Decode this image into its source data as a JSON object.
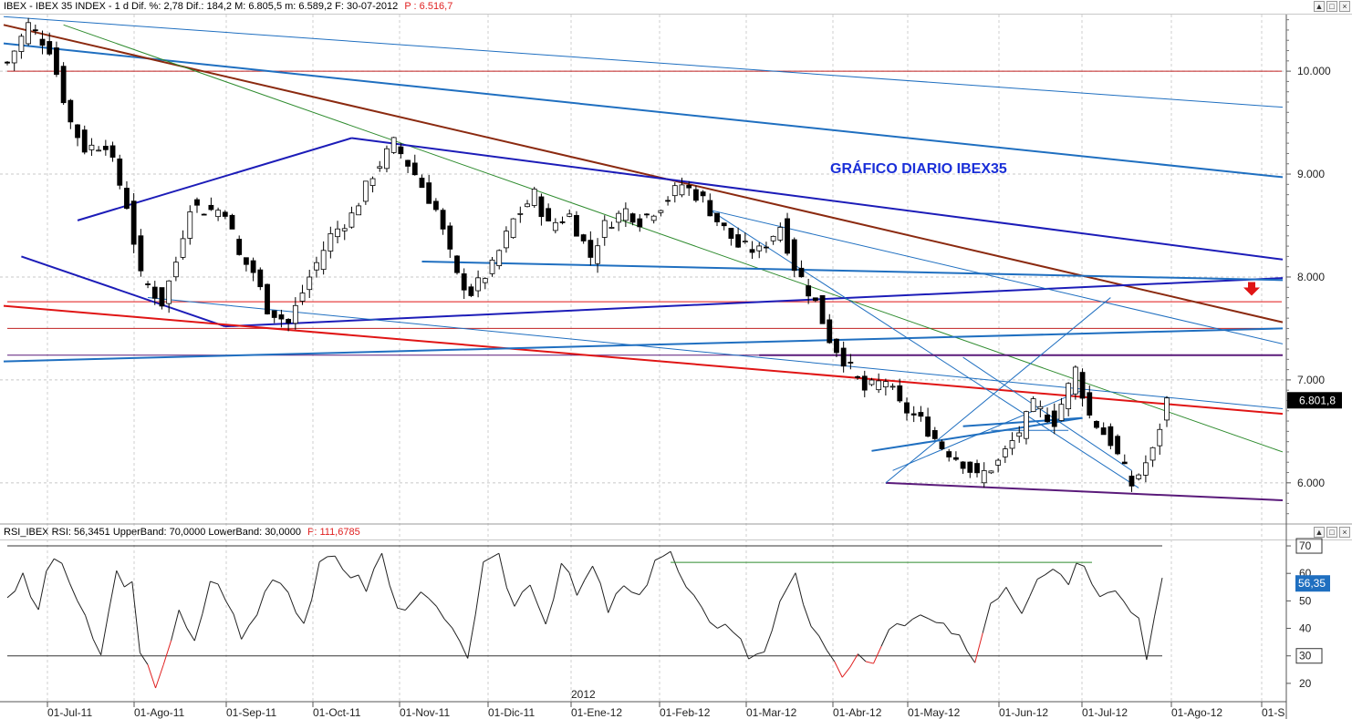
{
  "price_header": {
    "text": "IBEX - IBEX 35 INDEX - 1 d  Dif. %: 2,78  Dif.: 184,2  M: 6.805,5  m: 6.589,2  F: 30-07-2012",
    "p_text": "P : 6.516,7"
  },
  "rsi_header": {
    "text": "RSI_IBEX  RSI: 56,3451  UpperBand: 70,0000  LowerBand: 30,0000",
    "p_text": "P: 111,6785"
  },
  "window_buttons": [
    "▲",
    "□",
    "×"
  ],
  "annotation": "GRÁFICO DIARIO IBEX35",
  "year_label": "2012",
  "colors": {
    "bullish": "#ffffff",
    "bearish": "#000000",
    "trend_blue": "#1f6fc0",
    "trend_navy": "#1c1cb8",
    "trend_brown": "#8b2a10",
    "trend_red": "#e01515",
    "trend_green": "#2e8b2e",
    "trend_purple": "#5a1a7a",
    "rsi_line": "#222222",
    "rsi_oversold": "#e02020",
    "price_tag": "#000000"
  },
  "chart_data": [
    {
      "type": "candlestick",
      "title": "IBEX - IBEX 35 INDEX - 1 d",
      "x_labels": [
        "01-Jul-11",
        "01-Ago-11",
        "01-Sep-11",
        "01-Oct-11",
        "01-Nov-11",
        "01-Dic-11",
        "01-Ene-12",
        "01-Feb-12",
        "01-Mar-12",
        "01-Abr-12",
        "01-May-12",
        "01-Jun-12",
        "01-Jul-12",
        "01-Ago-12",
        "01-S"
      ],
      "y_ticks": [
        6000,
        7000,
        8000,
        9000,
        10000
      ],
      "y_tick_labels": [
        "6.000",
        "7.000",
        "8.000",
        "9.000",
        "10.000"
      ],
      "ylim": [
        5600,
        10550
      ],
      "last_value": 6801.8,
      "last_value_label": "6.801,8",
      "close_anchors": [
        [
          0,
          10080
        ],
        [
          3,
          10450
        ],
        [
          6,
          10220
        ],
        [
          9,
          9500
        ],
        [
          11,
          9250
        ],
        [
          14,
          9300
        ],
        [
          17,
          8700
        ],
        [
          19,
          8000
        ],
        [
          22,
          7750
        ],
        [
          24,
          8150
        ],
        [
          26,
          8700
        ],
        [
          28,
          8650
        ],
        [
          31,
          8650
        ],
        [
          33,
          8200
        ],
        [
          35,
          8050
        ],
        [
          37,
          7700
        ],
        [
          40,
          7550
        ],
        [
          43,
          8000
        ],
        [
          46,
          8400
        ],
        [
          49,
          8600
        ],
        [
          52,
          9000
        ],
        [
          55,
          9300
        ],
        [
          58,
          9000
        ],
        [
          61,
          8650
        ],
        [
          64,
          8000
        ],
        [
          66,
          7850
        ],
        [
          69,
          8100
        ],
        [
          72,
          8550
        ],
        [
          75,
          8800
        ],
        [
          77,
          8500
        ],
        [
          80,
          8600
        ],
        [
          83,
          8200
        ],
        [
          85,
          8500
        ],
        [
          88,
          8650
        ],
        [
          90,
          8550
        ],
        [
          93,
          8700
        ],
        [
          96,
          8900
        ],
        [
          99,
          8750
        ],
        [
          101,
          8550
        ],
        [
          104,
          8300
        ],
        [
          107,
          8250
        ],
        [
          110,
          8500
        ],
        [
          112,
          8100
        ],
        [
          115,
          7750
        ],
        [
          117,
          7400
        ],
        [
          119,
          7200
        ],
        [
          122,
          6900
        ],
        [
          125,
          7000
        ],
        [
          127,
          6750
        ],
        [
          130,
          6600
        ],
        [
          133,
          6350
        ],
        [
          136,
          6200
        ],
        [
          138,
          6050
        ],
        [
          141,
          6200
        ],
        [
          144,
          6500
        ],
        [
          146,
          6750
        ],
        [
          149,
          6600
        ],
        [
          152,
          7100
        ],
        [
          154,
          6650
        ],
        [
          157,
          6400
        ],
        [
          160,
          5980
        ],
        [
          163,
          6300
        ],
        [
          165,
          6800
        ]
      ],
      "n_days": 166,
      "horizontal_levels": [
        {
          "y": 10000,
          "color": "#c02020"
        },
        {
          "y": 7760,
          "color": "#e01515"
        },
        {
          "y": 7500,
          "color": "#c02020"
        },
        {
          "y": 7240,
          "color": "#5a1a7a"
        }
      ],
      "trendlines": [
        {
          "from": [
            0,
            10530
          ],
          "to": [
            165,
            9650
          ],
          "color": "#1f6fc0",
          "w": 1
        },
        {
          "from": [
            0,
            10270
          ],
          "to": [
            165,
            8970
          ],
          "color": "#1f6fc0",
          "w": 2
        },
        {
          "from": [
            0,
            10450
          ],
          "to": [
            165,
            7560
          ],
          "color": "#8b2a10",
          "w": 2
        },
        {
          "from": [
            8,
            10450
          ],
          "to": [
            165,
            6300
          ],
          "color": "#2e8b2e",
          "w": 1
        },
        {
          "from": [
            10,
            8550
          ],
          "to": [
            49,
            9350
          ],
          "color": "#1c1cb8",
          "w": 2
        },
        {
          "from": [
            49,
            9350
          ],
          "to": [
            165,
            8170
          ],
          "color": "#1c1cb8",
          "w": 2
        },
        {
          "from": [
            2,
            8200
          ],
          "to": [
            31,
            7520
          ],
          "color": "#1c1cb8",
          "w": 2
        },
        {
          "from": [
            31,
            7520
          ],
          "to": [
            165,
            7990
          ],
          "color": "#1c1cb8",
          "w": 2
        },
        {
          "from": [
            0,
            7720
          ],
          "to": [
            165,
            6670
          ],
          "color": "#e01515",
          "w": 2
        },
        {
          "from": [
            0,
            7180
          ],
          "to": [
            165,
            7500
          ],
          "color": "#1f6fc0",
          "w": 2
        },
        {
          "from": [
            59,
            8150
          ],
          "to": [
            165,
            7970
          ],
          "color": "#1f6fc0",
          "w": 2
        },
        {
          "from": [
            20,
            7800
          ],
          "to": [
            165,
            6720
          ],
          "color": "#1f6fc0",
          "w": 1
        },
        {
          "from": [
            100,
            8650
          ],
          "to": [
            165,
            7350
          ],
          "color": "#1f6fc0",
          "w": 1
        },
        {
          "from": [
            100,
            8650
          ],
          "to": [
            161,
            5950
          ],
          "color": "#1f6fc0",
          "w": 1
        },
        {
          "from": [
            107,
            7240
          ],
          "to": [
            165,
            7240
          ],
          "color": "#5a1a7a",
          "w": 2
        },
        {
          "from": [
            125,
            6000
          ],
          "to": [
            165,
            5830
          ],
          "color": "#5a1a7a",
          "w": 2
        },
        {
          "from": [
            123,
            6310
          ],
          "to": [
            153,
            6630
          ],
          "color": "#1f6fc0",
          "w": 2
        },
        {
          "from": [
            136,
            6550
          ],
          "to": [
            153,
            6630
          ],
          "color": "#1f6fc0",
          "w": 2
        },
        {
          "from": [
            126,
            6120
          ],
          "to": [
            153,
            6900
          ],
          "color": "#1f6fc0",
          "w": 1
        },
        {
          "from": [
            125,
            6000
          ],
          "to": [
            157,
            7800
          ],
          "color": "#1f6fc0",
          "w": 1
        },
        {
          "from": [
            136,
            7220
          ],
          "to": [
            160,
            6120
          ],
          "color": "#1f6fc0",
          "w": 1
        },
        {
          "from": [
            140,
            6510
          ],
          "to": [
            151,
            6510
          ],
          "color": "#1f6fc0",
          "w": 1
        }
      ]
    },
    {
      "type": "line",
      "title": "RSI_IBEX",
      "y_ticks": [
        20,
        30,
        40,
        50,
        60,
        70
      ],
      "y_tick_labels": [
        "20",
        "30",
        "40",
        "50",
        "60",
        "70"
      ],
      "ylim": [
        14,
        72
      ],
      "upper_band": 70,
      "lower_band": 30,
      "last_value": 56.35,
      "last_value_label": "56,35",
      "anchors": [
        [
          0,
          52
        ],
        [
          2,
          58
        ],
        [
          4,
          46
        ],
        [
          5,
          62
        ],
        [
          7,
          64
        ],
        [
          9,
          50
        ],
        [
          11,
          35
        ],
        [
          12,
          31
        ],
        [
          14,
          60
        ],
        [
          16,
          55
        ],
        [
          17,
          30
        ],
        [
          19,
          20
        ],
        [
          20,
          28
        ],
        [
          22,
          45
        ],
        [
          24,
          34
        ],
        [
          26,
          58
        ],
        [
          28,
          52
        ],
        [
          30,
          36
        ],
        [
          32,
          46
        ],
        [
          34,
          60
        ],
        [
          36,
          54
        ],
        [
          38,
          42
        ],
        [
          40,
          62
        ],
        [
          42,
          66
        ],
        [
          44,
          60
        ],
        [
          46,
          55
        ],
        [
          48,
          67
        ],
        [
          50,
          46
        ],
        [
          52,
          52
        ],
        [
          54,
          50
        ],
        [
          56,
          43
        ],
        [
          58,
          33
        ],
        [
          59,
          31
        ],
        [
          61,
          62
        ],
        [
          63,
          65
        ],
        [
          65,
          48
        ],
        [
          67,
          58
        ],
        [
          69,
          42
        ],
        [
          71,
          64
        ],
        [
          73,
          52
        ],
        [
          75,
          62
        ],
        [
          77,
          47
        ],
        [
          79,
          55
        ],
        [
          81,
          50
        ],
        [
          83,
          66
        ],
        [
          85,
          67
        ],
        [
          87,
          54
        ],
        [
          89,
          46
        ],
        [
          91,
          42
        ],
        [
          93,
          40
        ],
        [
          95,
          30
        ],
        [
          97,
          33
        ],
        [
          99,
          48
        ],
        [
          101,
          58
        ],
        [
          103,
          42
        ],
        [
          105,
          30
        ],
        [
          107,
          24
        ],
        [
          109,
          30
        ],
        [
          111,
          26
        ],
        [
          113,
          41
        ],
        [
          115,
          40
        ],
        [
          117,
          44
        ],
        [
          119,
          42
        ],
        [
          121,
          37
        ],
        [
          123,
          34
        ],
        [
          124,
          28
        ],
        [
          126,
          50
        ],
        [
          128,
          56
        ],
        [
          130,
          47
        ],
        [
          132,
          60
        ],
        [
          134,
          63
        ],
        [
          136,
          57
        ],
        [
          137,
          66
        ],
        [
          138,
          62
        ],
        [
          140,
          54
        ],
        [
          142,
          56
        ],
        [
          143,
          50
        ],
        [
          145,
          44
        ],
        [
          146,
          31
        ],
        [
          148,
          57
        ]
      ],
      "n_days": 149,
      "resistance_line": {
        "from": [
          85,
          64
        ],
        "to": [
          139,
          64
        ],
        "color": "#2e8b2e"
      }
    }
  ]
}
